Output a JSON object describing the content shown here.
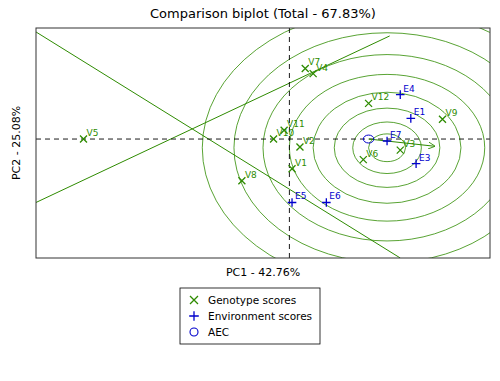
{
  "chart_data": {
    "type": "scatter",
    "title": "Comparison biplot (Total - 67.83%)",
    "xlabel": "PC1 - 42.76%",
    "ylabel": "PC2 - 25.08%",
    "xlim": [
      -4.8,
      3.8
    ],
    "ylim": [
      -3.0,
      2.8
    ],
    "tick_labels": false,
    "grid": false,
    "legend": "bottom",
    "series": [
      {
        "name": "Genotype scores",
        "color": "#2e8b00",
        "marker": "x",
        "labels": [
          "V1",
          "V2",
          "V3",
          "V4",
          "V5",
          "V6",
          "V7",
          "V8",
          "V9",
          "V10",
          "V11",
          "V12"
        ],
        "x": [
          0.05,
          0.2,
          2.1,
          0.45,
          -3.9,
          1.4,
          0.3,
          -0.9,
          2.9,
          -0.3,
          -0.1,
          1.5
        ],
        "values": [
          -0.75,
          -0.2,
          -0.28,
          1.65,
          0.0,
          -0.52,
          1.78,
          -1.05,
          0.5,
          0.0,
          0.22,
          0.9
        ]
      },
      {
        "name": "Environment scores",
        "color": "#0000cc",
        "marker": "+",
        "labels": [
          "E1",
          "E3",
          "E4",
          "E5",
          "E6",
          "E7"
        ],
        "x": [
          2.3,
          2.4,
          2.1,
          0.05,
          0.7,
          1.85
        ],
        "values": [
          0.52,
          -0.62,
          1.12,
          -1.6,
          -1.6,
          -0.05
        ]
      },
      {
        "name": "AEC",
        "color": "#0000cc",
        "marker": "o",
        "x": [
          1.5
        ],
        "values": [
          0.0
        ],
        "radius": [
          0.1
        ]
      }
    ],
    "circles": {
      "cx": 1.85,
      "cy": -0.22,
      "radii": [
        0.35,
        0.65,
        1.0,
        1.4,
        1.85,
        2.35,
        2.9,
        3.5
      ],
      "color": "#2e8b00"
    },
    "lines": [
      {
        "x": [
          -4.8,
          2.1
        ],
        "y": [
          2.7,
          -3.0
        ],
        "color": "#2e8b00"
      },
      {
        "x": [
          -4.8,
          1.9
        ],
        "y": [
          -1.6,
          2.6
        ],
        "color": "#2e8b00"
      }
    ],
    "hline_y": 0.0,
    "vline_x": 0.0,
    "arrow": {
      "x": [
        1.5,
        2.75
      ],
      "y": [
        0.0,
        -0.18
      ],
      "color": "#2e8b00"
    }
  }
}
